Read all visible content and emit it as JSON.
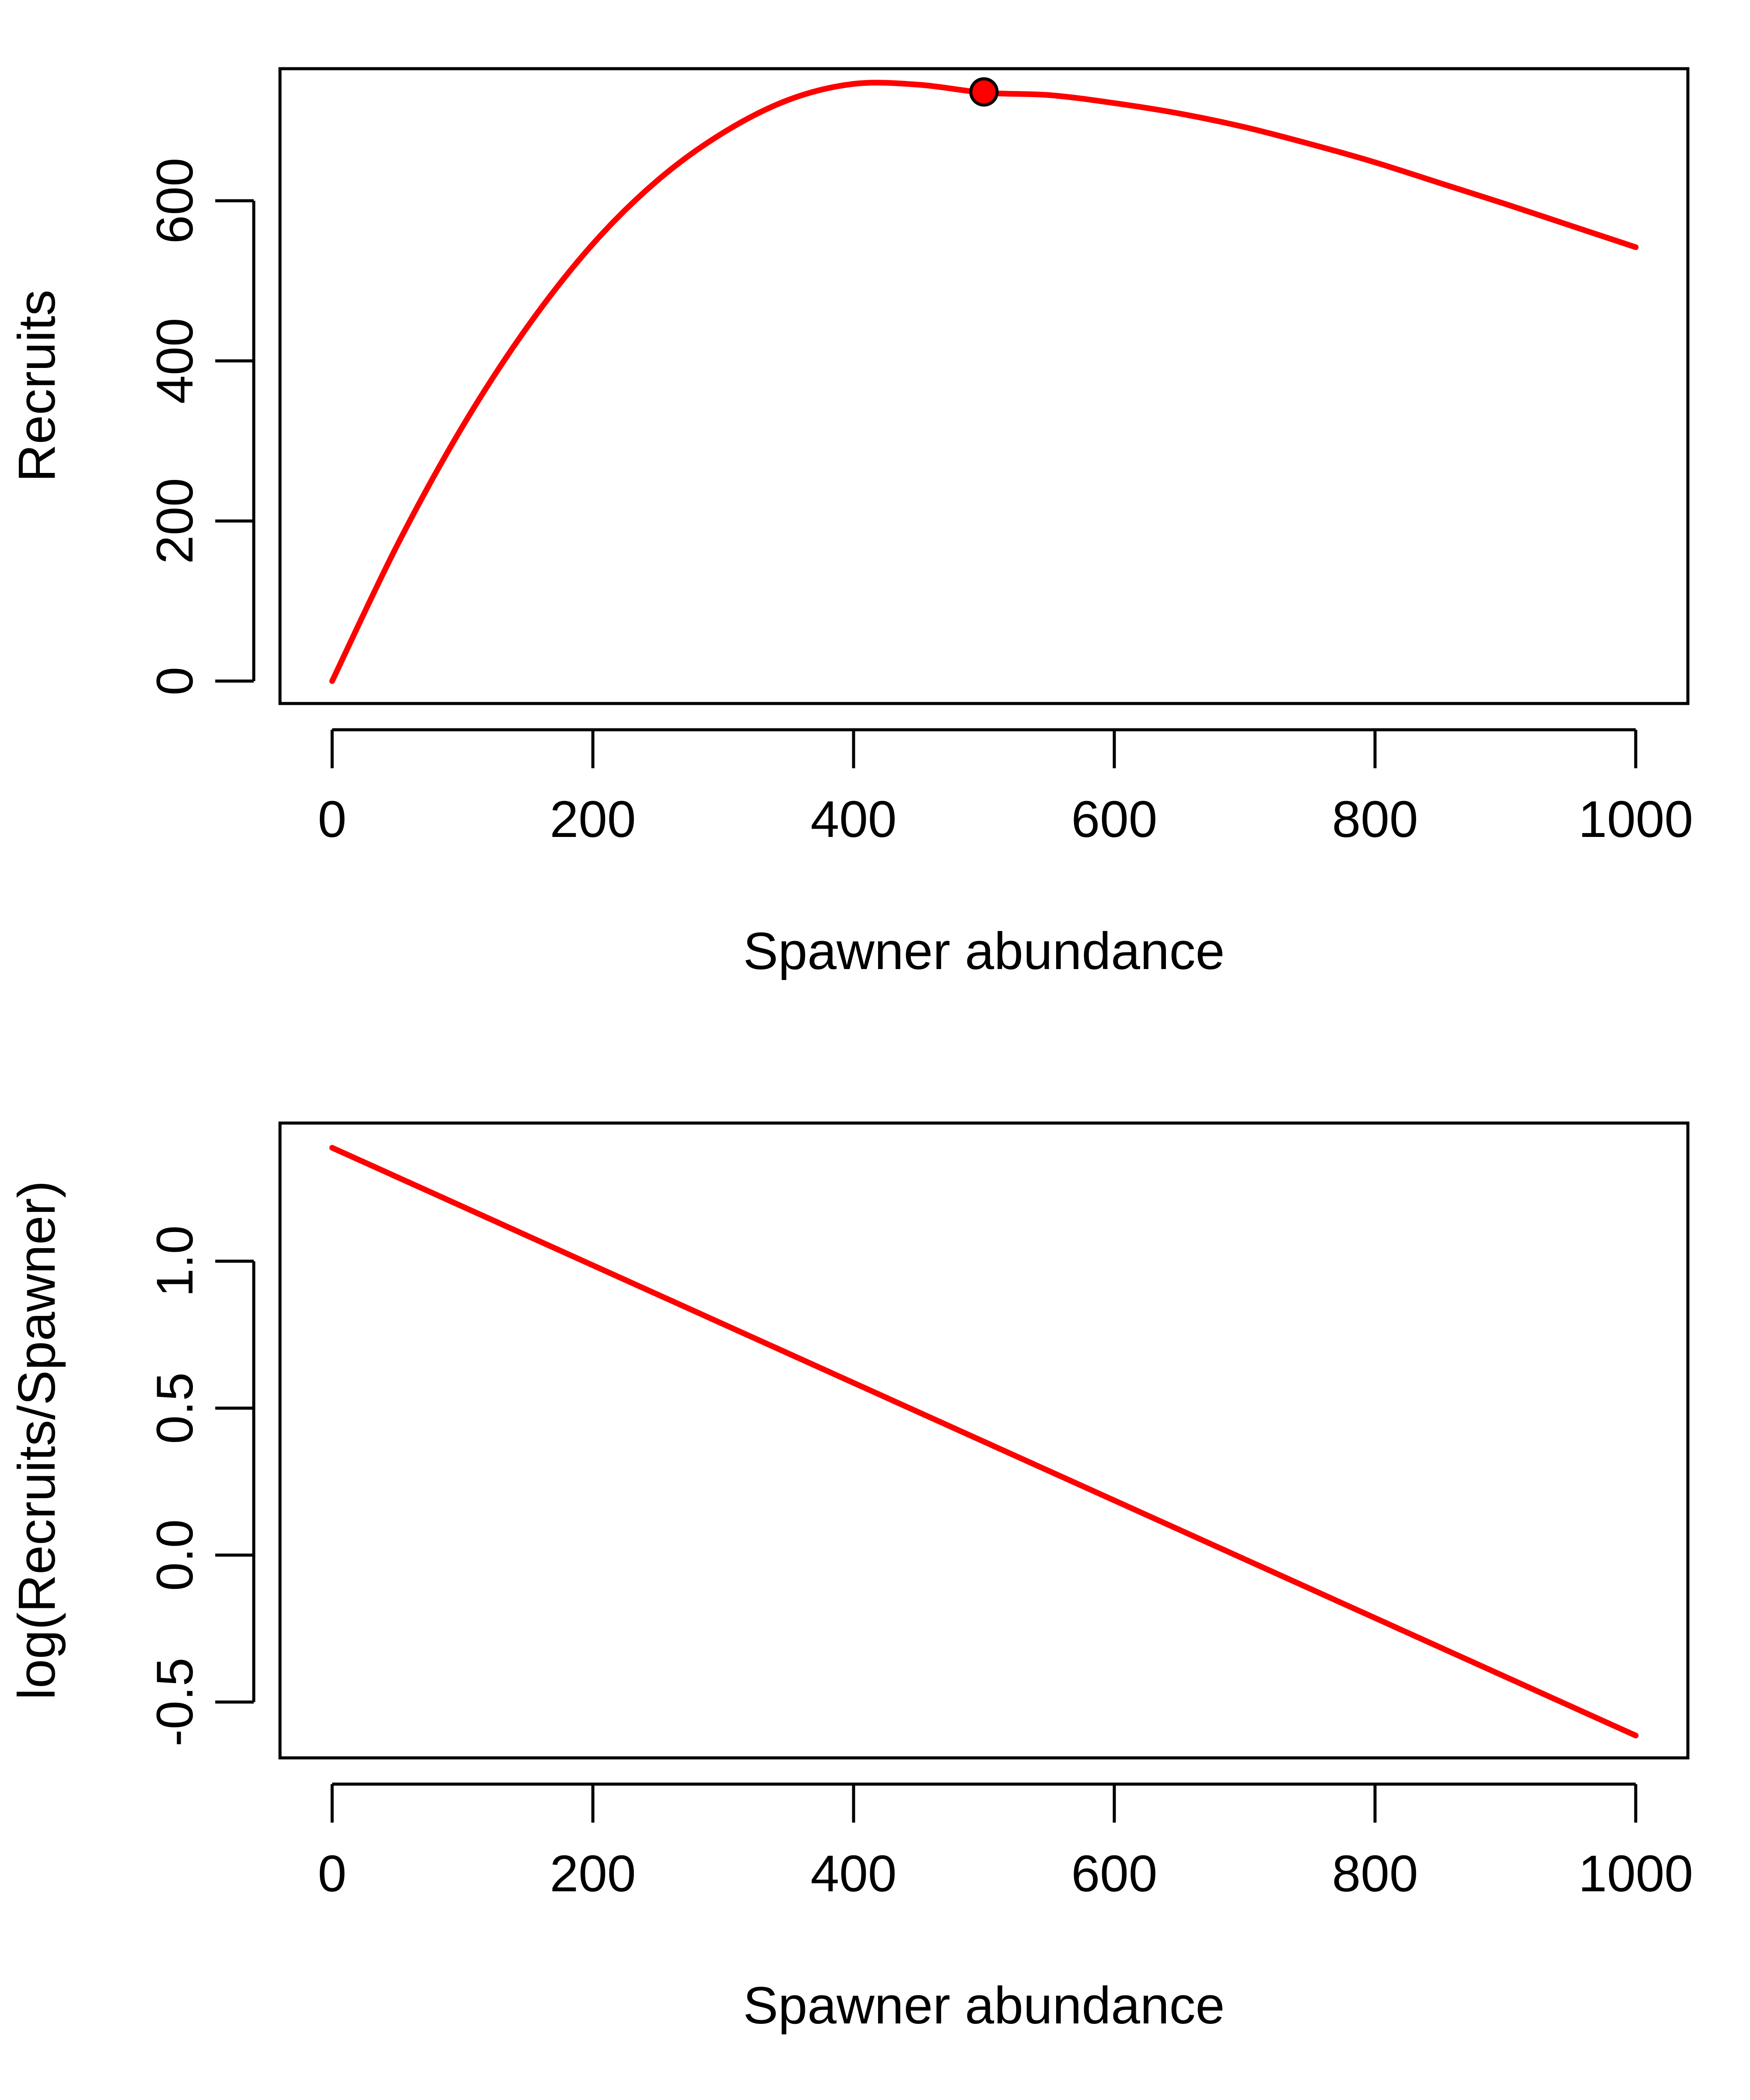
{
  "colors": {
    "series": "#ff0000",
    "marker_fill": "#ff0000",
    "marker_stroke": "#000000",
    "axis": "#000000",
    "background": "#ffffff"
  },
  "chart_data": [
    {
      "type": "line",
      "title": "",
      "xlabel": "Spawner abundance",
      "ylabel": "Recruits",
      "xlim": [
        -40,
        1040
      ],
      "ylim": [
        -28,
        765
      ],
      "x_ticks": [
        0,
        200,
        400,
        600,
        800,
        1000
      ],
      "x_tick_labels": [
        "0",
        "200",
        "400",
        "600",
        "800",
        "1000"
      ],
      "y_ticks": [
        0,
        200,
        400,
        600
      ],
      "y_tick_labels": [
        "0",
        "200",
        "400",
        "600"
      ],
      "grid": false,
      "legend": "none",
      "series": [
        {
          "x": [
            0,
            50,
            100,
            150,
            200,
            250,
            300,
            350,
            400,
            450,
            500,
            550,
            600,
            650,
            700,
            750,
            800,
            850,
            900,
            950,
            1000
          ],
          "y": [
            0,
            170,
            318,
            443,
            546,
            626,
            685,
            726,
            746,
            745,
            735,
            732,
            722,
            709,
            692,
            671,
            648,
            622,
            596,
            569,
            542
          ]
        }
      ],
      "points": [
        {
          "x": 500,
          "y": 736
        }
      ]
    },
    {
      "type": "line",
      "title": "",
      "xlabel": "Spawner abundance",
      "ylabel": "log(Recruits/Spawner)",
      "xlim": [
        -40,
        1040
      ],
      "ylim": [
        -0.69,
        1.47
      ],
      "x_ticks": [
        0,
        200,
        400,
        600,
        800,
        1000
      ],
      "x_tick_labels": [
        "0",
        "200",
        "400",
        "600",
        "800",
        "1000"
      ],
      "y_ticks": [
        -0.5,
        0.0,
        0.5,
        1.0
      ],
      "y_tick_labels": [
        "-0.5",
        "0.0",
        "0.5",
        "1.0"
      ],
      "grid": false,
      "legend": "none",
      "series": [
        {
          "x": [
            0,
            1000
          ],
          "y": [
            1.386,
            -0.614
          ]
        }
      ]
    }
  ]
}
